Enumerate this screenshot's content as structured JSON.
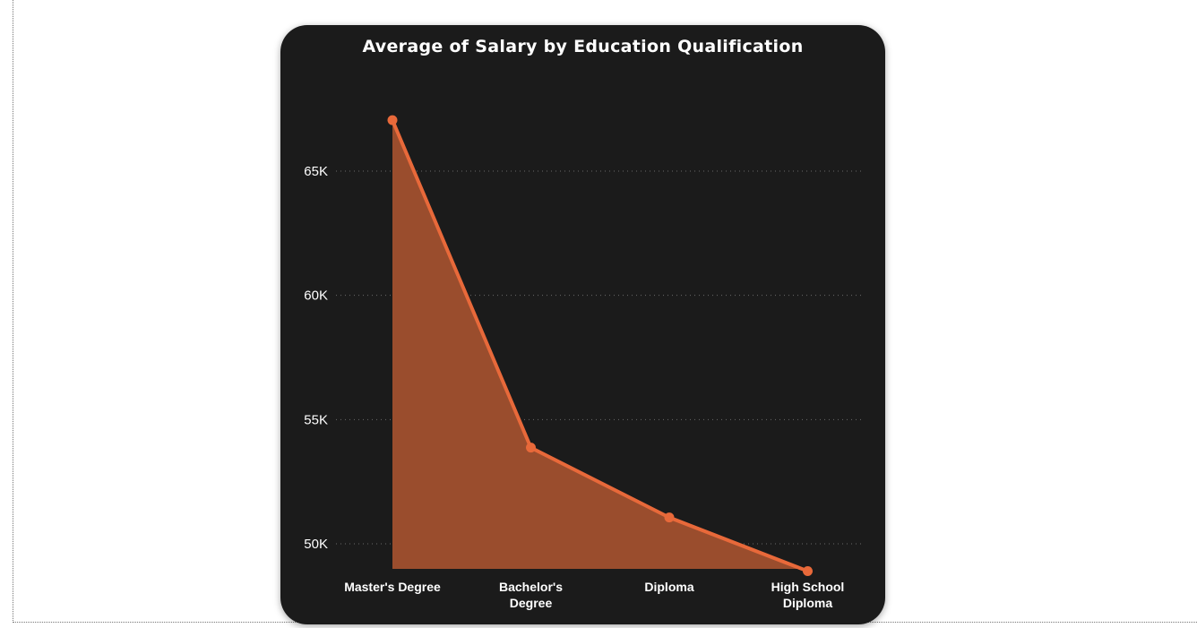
{
  "chart_data": {
    "type": "area",
    "title": "Average of Salary by Education Qualification",
    "xlabel": "",
    "ylabel": "",
    "categories": [
      "Master's Degree",
      "Bachelor's Degree",
      "Diploma",
      "High School Diploma"
    ],
    "category_lines": [
      [
        "Master's Degree"
      ],
      [
        "Bachelor's",
        "Degree"
      ],
      [
        "Diploma"
      ],
      [
        "High School",
        "Diploma"
      ]
    ],
    "values": [
      67050,
      53870,
      51060,
      48900
    ],
    "ylim": [
      47000,
      69000
    ],
    "yticks": [
      50000,
      55000,
      60000,
      65000
    ],
    "ytick_labels": [
      "50K",
      "55K",
      "60K",
      "65K"
    ],
    "grid": true,
    "legend": "none",
    "colors": {
      "line": "#e8693a",
      "fill": "#9a4d2d",
      "grid": "#6a6a6a",
      "background": "#1b1b1b",
      "text": "#ffffff"
    }
  }
}
